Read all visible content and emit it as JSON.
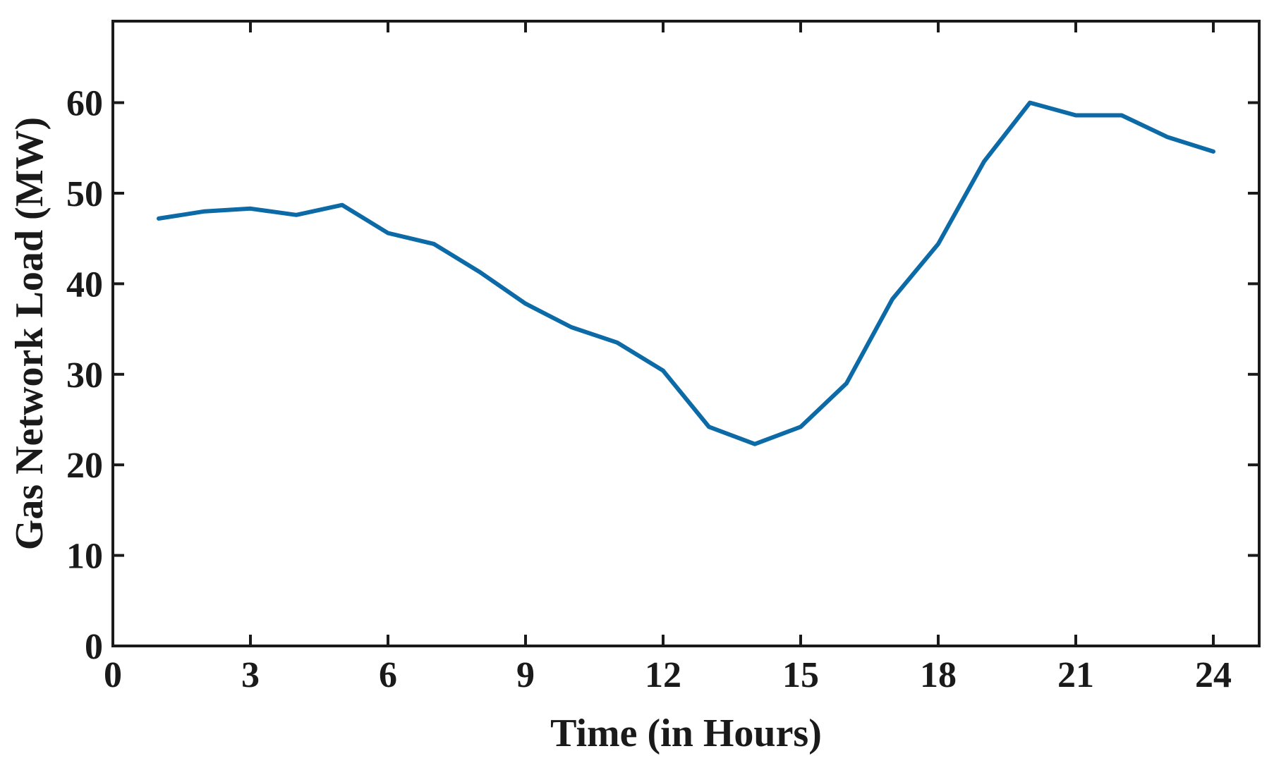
{
  "chart_data": {
    "type": "line",
    "title": "",
    "xlabel": "Time (in Hours)",
    "ylabel": "Gas Network Load (MW)",
    "xlim": [
      0,
      25
    ],
    "ylim": [
      0,
      69
    ],
    "x_ticks": [
      0,
      3,
      6,
      9,
      12,
      15,
      18,
      21,
      24
    ],
    "y_ticks": [
      0,
      10,
      20,
      30,
      40,
      50,
      60
    ],
    "x_tick_labels": [
      "0",
      "3",
      "6",
      "9",
      "12",
      "15",
      "18",
      "21",
      "24"
    ],
    "y_tick_labels": [
      "0",
      "10",
      "20",
      "30",
      "40",
      "50",
      "60"
    ],
    "grid": false,
    "legend": "none",
    "series": [
      {
        "color": "#0c6aa6",
        "x": [
          1,
          2,
          3,
          4,
          5,
          6,
          7,
          8,
          9,
          10,
          11,
          12,
          13,
          14,
          15,
          16,
          17,
          18,
          19,
          20,
          21,
          22,
          23,
          24
        ],
        "y": [
          47.2,
          48.0,
          48.3,
          47.6,
          48.7,
          45.6,
          44.4,
          41.3,
          37.8,
          35.2,
          33.5,
          30.4,
          24.2,
          22.3,
          24.2,
          29.0,
          38.3,
          44.4,
          53.5,
          60.0,
          58.6,
          58.6,
          56.2,
          54.6
        ]
      }
    ]
  }
}
